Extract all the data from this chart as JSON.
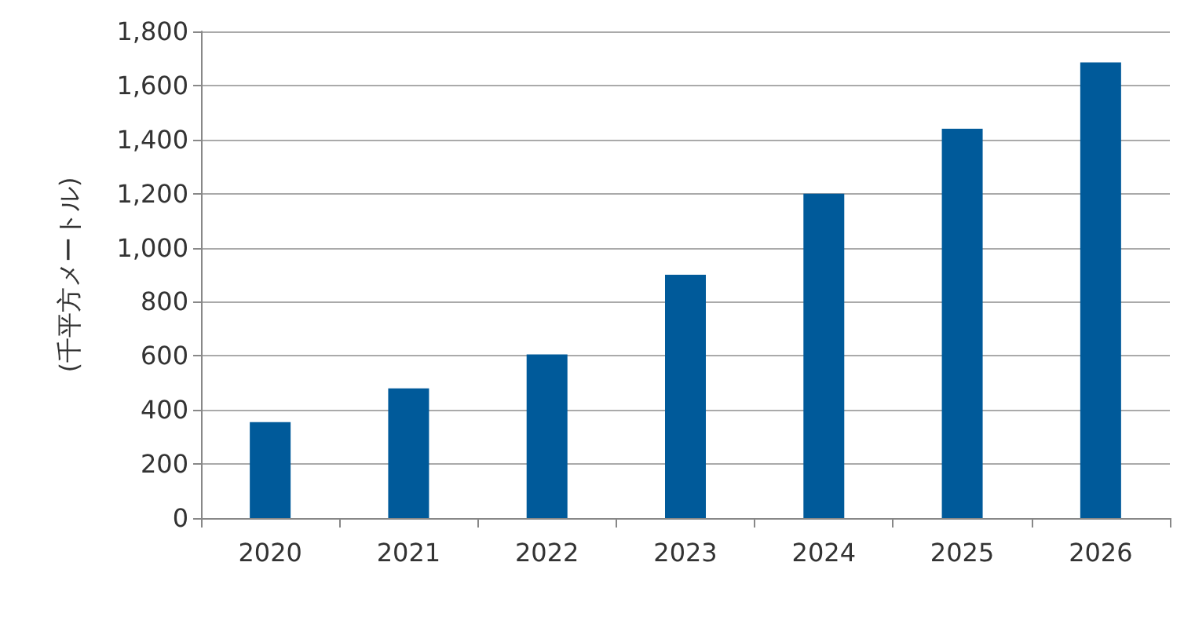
{
  "chart_data": {
    "type": "bar",
    "ylabel": "(千平方メートル)",
    "categories": [
      "2020",
      "2021",
      "2022",
      "2023",
      "2024",
      "2025",
      "2026"
    ],
    "values": [
      355,
      480,
      605,
      900,
      1200,
      1440,
      1685
    ],
    "color": "#005a9a",
    "ylim": [
      0,
      1800
    ],
    "yticks": [
      {
        "value": 0,
        "label": "0"
      },
      {
        "value": 200,
        "label": "200"
      },
      {
        "value": 400,
        "label": "400"
      },
      {
        "value": 600,
        "label": "600"
      },
      {
        "value": 800,
        "label": "800"
      },
      {
        "value": 1000,
        "label": "1,000"
      },
      {
        "value": 1200,
        "label": "1,200"
      },
      {
        "value": 1400,
        "label": "1,400"
      },
      {
        "value": 1600,
        "label": "1,600"
      },
      {
        "value": 1800,
        "label": "1,800"
      }
    ],
    "grid": "y"
  }
}
